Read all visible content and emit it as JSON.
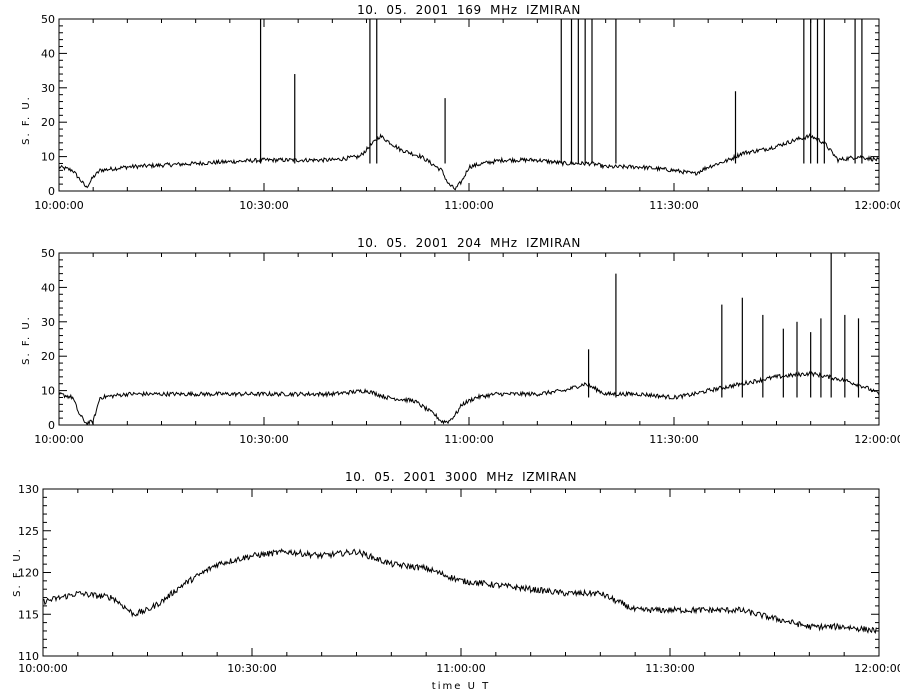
{
  "chart_data": [
    {
      "type": "line",
      "title": "10.  05.  2001   169 MHz   IZMIRAN",
      "xlabel": "",
      "ylabel": "S. F. U.",
      "xlim": [
        "10:00:00",
        "12:00:00"
      ],
      "ylim": [
        0,
        50
      ],
      "x_ticks": [
        "10:00:00",
        "10:30:00",
        "11:00:00",
        "11:30:00",
        "12:00:00"
      ],
      "y_ticks": [
        "0",
        "10",
        "20",
        "30",
        "40",
        "50"
      ],
      "grid": false,
      "color": "#000000",
      "series": [
        {
          "x": [
            "10:00:00",
            "10:02:00",
            "10:04:00",
            "10:05:00",
            "10:06:00",
            "10:10:00",
            "10:20:00",
            "10:30:00",
            "10:40:00",
            "10:44:00",
            "10:46:00",
            "10:47:00",
            "10:50:00",
            "10:53:00",
            "10:56:00",
            "10:57:00",
            "10:58:00",
            "10:59:00",
            "11:00:00",
            "11:02:00",
            "11:05:00",
            "11:10:00",
            "11:14:00",
            "11:18:00",
            "11:20:00",
            "11:25:00",
            "11:30:00",
            "11:33:00",
            "11:35:00",
            "11:38:00",
            "11:40:00",
            "11:43:00",
            "11:45:00",
            "11:48:00",
            "11:50:00",
            "11:52:00",
            "11:54:00",
            "11:57:00",
            "12:00:00"
          ],
          "values": [
            7,
            6,
            1,
            4,
            6,
            7,
            8,
            9,
            9,
            10,
            14,
            16,
            12,
            10,
            6,
            2,
            0.5,
            3,
            7,
            8,
            9,
            9,
            8,
            8,
            7,
            7,
            6,
            5,
            7,
            9,
            11,
            12,
            13,
            15,
            16,
            14,
            9,
            10,
            9
          ]
        }
      ],
      "spikes": [
        {
          "x": "10:29:30",
          "y": 50
        },
        {
          "x": "10:34:30",
          "y": 34
        },
        {
          "x": "10:45:30",
          "y": 50
        },
        {
          "x": "10:46:30",
          "y": 50
        },
        {
          "x": "10:56:30",
          "y": 27
        },
        {
          "x": "11:13:30",
          "y": 50
        },
        {
          "x": "11:15:00",
          "y": 50
        },
        {
          "x": "11:16:00",
          "y": 50
        },
        {
          "x": "11:17:00",
          "y": 50
        },
        {
          "x": "11:18:00",
          "y": 50
        },
        {
          "x": "11:21:30",
          "y": 50
        },
        {
          "x": "11:39:00",
          "y": 29
        },
        {
          "x": "11:49:00",
          "y": 50
        },
        {
          "x": "11:50:00",
          "y": 50
        },
        {
          "x": "11:51:00",
          "y": 50
        },
        {
          "x": "11:52:00",
          "y": 50
        },
        {
          "x": "11:56:30",
          "y": 50
        },
        {
          "x": "11:57:30",
          "y": 50
        }
      ]
    },
    {
      "type": "line",
      "title": "10.  05.  2001   204 MHz   IZMIRAN",
      "xlabel": "",
      "ylabel": "S. F. U.",
      "xlim": [
        "10:00:00",
        "12:00:00"
      ],
      "ylim": [
        0,
        50
      ],
      "x_ticks": [
        "10:00:00",
        "10:30:00",
        "11:00:00",
        "11:30:00",
        "12:00:00"
      ],
      "y_ticks": [
        "0",
        "10",
        "20",
        "30",
        "40",
        "50"
      ],
      "grid": false,
      "color": "#000000",
      "series": [
        {
          "x": [
            "10:00:00",
            "10:02:00",
            "10:03:00",
            "10:04:00",
            "10:05:00",
            "10:06:00",
            "10:10:00",
            "10:20:00",
            "10:30:00",
            "10:40:00",
            "10:45:00",
            "10:48:00",
            "10:52:00",
            "10:55:00",
            "10:56:00",
            "10:57:00",
            "10:58:00",
            "10:59:00",
            "11:01:00",
            "11:04:00",
            "11:10:00",
            "11:14:00",
            "11:17:00",
            "11:20:00",
            "11:25:00",
            "11:30:00",
            "11:33:00",
            "11:35:00",
            "11:40:00",
            "11:45:00",
            "11:50:00",
            "11:55:00",
            "11:58:00",
            "12:00:00"
          ],
          "values": [
            9,
            8,
            3,
            0.5,
            1,
            8,
            9,
            9,
            9,
            9,
            10,
            8,
            7,
            3,
            1,
            1,
            3,
            6,
            8,
            9,
            9,
            10,
            12,
            9,
            9,
            8,
            9,
            10,
            12,
            14,
            15,
            13,
            11,
            9
          ]
        }
      ],
      "spikes": [
        {
          "x": "11:17:30",
          "y": 22
        },
        {
          "x": "11:21:30",
          "y": 44
        },
        {
          "x": "11:37:00",
          "y": 35
        },
        {
          "x": "11:40:00",
          "y": 37
        },
        {
          "x": "11:43:00",
          "y": 32
        },
        {
          "x": "11:46:00",
          "y": 28
        },
        {
          "x": "11:48:00",
          "y": 30
        },
        {
          "x": "11:50:00",
          "y": 27
        },
        {
          "x": "11:51:30",
          "y": 31
        },
        {
          "x": "11:53:00",
          "y": 50
        },
        {
          "x": "11:55:00",
          "y": 32
        },
        {
          "x": "11:57:00",
          "y": 31
        }
      ]
    },
    {
      "type": "line",
      "title": "10.  05.  2001   3000 MHz   IZMIRAN",
      "xlabel": "time  U T",
      "ylabel": "S. F. U.",
      "xlim": [
        "10:00:00",
        "12:00:00"
      ],
      "ylim": [
        110,
        130
      ],
      "x_ticks": [
        "10:00:00",
        "10:30:00",
        "11:00:00",
        "11:30:00",
        "12:00:00"
      ],
      "y_ticks": [
        "110",
        "115",
        "120",
        "125",
        "130"
      ],
      "grid": false,
      "color": "#000000",
      "series": [
        {
          "x": [
            "10:00:00",
            "10:05:00",
            "10:10:00",
            "10:13:00",
            "10:15:00",
            "10:17:00",
            "10:20:00",
            "10:25:00",
            "10:30:00",
            "10:35:00",
            "10:40:00",
            "10:45:00",
            "10:50:00",
            "10:55:00",
            "11:00:00",
            "11:05:00",
            "11:10:00",
            "11:15:00",
            "11:20:00",
            "11:25:00",
            "11:30:00",
            "11:35:00",
            "11:40:00",
            "11:45:00",
            "11:50:00",
            "11:55:00",
            "12:00:00"
          ],
          "values": [
            116.5,
            117.5,
            117,
            115,
            115.5,
            116.5,
            118.5,
            121,
            122,
            122.5,
            122,
            122.5,
            121,
            120.5,
            119,
            118.5,
            118,
            117.5,
            117.5,
            115.5,
            115.5,
            115.5,
            115.5,
            114.5,
            113.5,
            113.5,
            113
          ]
        }
      ]
    }
  ]
}
